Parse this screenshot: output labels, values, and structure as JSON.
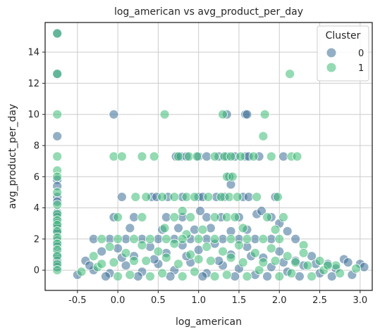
{
  "chart_data": {
    "type": "scatter",
    "title": "log_american vs avg_product_per_day",
    "xlabel": "log_american",
    "ylabel": "avg_product_per_day",
    "xlim": [
      -0.9,
      3.15
    ],
    "ylim": [
      -1.3,
      15.9
    ],
    "x_ticks": [
      "-0.5",
      "0.0",
      "0.5",
      "1.0",
      "1.5",
      "2.0",
      "2.5",
      "3.0"
    ],
    "x_tick_values": [
      -0.5,
      0.0,
      0.5,
      1.0,
      1.5,
      2.0,
      2.5,
      3.0
    ],
    "y_ticks": [
      "0",
      "2",
      "4",
      "6",
      "8",
      "10",
      "12",
      "14"
    ],
    "y_tick_values": [
      0,
      2,
      4,
      6,
      8,
      10,
      12,
      14
    ],
    "grid": true,
    "legend": {
      "title": "Cluster",
      "placement": "top-right",
      "entries": [
        "0",
        "1"
      ]
    },
    "series": [
      {
        "name": "0",
        "color": "#3b6d96",
        "points": [
          [
            -0.75,
            15.2
          ],
          [
            -0.75,
            12.6
          ],
          [
            -0.75,
            8.6
          ],
          [
            -0.75,
            5.8
          ],
          [
            -0.75,
            5.4
          ],
          [
            -0.75,
            4.7
          ],
          [
            -0.75,
            4.4
          ],
          [
            -0.75,
            3.7
          ],
          [
            -0.75,
            3.4
          ],
          [
            -0.75,
            3.0
          ],
          [
            -0.75,
            2.7
          ],
          [
            -0.75,
            2.4
          ],
          [
            -0.75,
            1.9
          ],
          [
            -0.75,
            1.5
          ],
          [
            -0.75,
            1.0
          ],
          [
            -0.75,
            0.6
          ],
          [
            -0.75,
            0.2
          ],
          [
            -0.05,
            10.0
          ],
          [
            1.35,
            10.0
          ],
          [
            1.58,
            10.0
          ],
          [
            1.6,
            10.0
          ],
          [
            0.72,
            7.3
          ],
          [
            0.78,
            7.3
          ],
          [
            0.85,
            7.3
          ],
          [
            1.0,
            7.3
          ],
          [
            1.1,
            7.3
          ],
          [
            1.25,
            7.3
          ],
          [
            1.35,
            7.3
          ],
          [
            1.45,
            7.3
          ],
          [
            1.58,
            7.3
          ],
          [
            1.62,
            7.3
          ],
          [
            1.75,
            7.3
          ],
          [
            2.05,
            7.3
          ],
          [
            1.38,
            6.0
          ],
          [
            1.4,
            5.5
          ],
          [
            0.05,
            4.7
          ],
          [
            0.42,
            4.7
          ],
          [
            0.48,
            4.7
          ],
          [
            0.62,
            4.7
          ],
          [
            0.8,
            4.7
          ],
          [
            1.0,
            4.7
          ],
          [
            1.05,
            4.7
          ],
          [
            1.22,
            4.7
          ],
          [
            1.32,
            4.7
          ],
          [
            1.55,
            4.7
          ],
          [
            1.62,
            4.7
          ],
          [
            1.95,
            4.7
          ],
          [
            -0.05,
            3.4
          ],
          [
            0.2,
            3.4
          ],
          [
            0.6,
            3.4
          ],
          [
            0.8,
            3.4
          ],
          [
            1.1,
            3.4
          ],
          [
            1.28,
            3.4
          ],
          [
            1.5,
            3.4
          ],
          [
            1.72,
            3.6
          ],
          [
            1.78,
            3.8
          ],
          [
            1.02,
            3.8
          ],
          [
            1.9,
            3.4
          ],
          [
            2.0,
            3.0
          ],
          [
            0.15,
            2.7
          ],
          [
            0.55,
            2.6
          ],
          [
            0.75,
            2.7
          ],
          [
            0.95,
            2.6
          ],
          [
            1.15,
            2.7
          ],
          [
            1.4,
            2.5
          ],
          [
            1.6,
            2.6
          ],
          [
            2.1,
            2.5
          ],
          [
            2.2,
            2.0
          ],
          [
            -0.3,
            2.0
          ],
          [
            -0.1,
            2.0
          ],
          [
            0.1,
            2.0
          ],
          [
            0.3,
            2.0
          ],
          [
            0.5,
            2.0
          ],
          [
            0.7,
            2.0
          ],
          [
            0.9,
            2.0
          ],
          [
            1.1,
            2.0
          ],
          [
            1.3,
            2.0
          ],
          [
            1.5,
            2.0
          ],
          [
            1.7,
            2.0
          ],
          [
            1.9,
            2.0
          ],
          [
            -0.4,
            0.6
          ],
          [
            -0.2,
            1.2
          ],
          [
            0.0,
            1.4
          ],
          [
            0.2,
            0.9
          ],
          [
            0.4,
            1.5
          ],
          [
            0.6,
            1.1
          ],
          [
            0.8,
            1.6
          ],
          [
            1.0,
            1.3
          ],
          [
            1.2,
            1.7
          ],
          [
            1.4,
            1.0
          ],
          [
            1.6,
            1.5
          ],
          [
            1.8,
            0.8
          ],
          [
            2.0,
            1.2
          ],
          [
            2.2,
            0.6
          ],
          [
            2.4,
            0.9
          ],
          [
            2.6,
            0.4
          ],
          [
            2.8,
            0.7
          ],
          [
            3.0,
            0.4
          ],
          [
            -0.5,
            -0.3
          ],
          [
            -0.3,
            0.0
          ],
          [
            -0.1,
            -0.2
          ],
          [
            0.1,
            0.3
          ],
          [
            0.3,
            -0.1
          ],
          [
            0.5,
            0.4
          ],
          [
            0.7,
            0.0
          ],
          [
            0.9,
            0.5
          ],
          [
            1.1,
            -0.2
          ],
          [
            1.3,
            0.3
          ],
          [
            1.5,
            0.1
          ],
          [
            1.7,
            -0.3
          ],
          [
            1.9,
            0.2
          ],
          [
            2.1,
            -0.1
          ],
          [
            2.3,
            0.3
          ],
          [
            2.5,
            -0.2
          ],
          [
            2.7,
            0.1
          ],
          [
            2.9,
            -0.3
          ],
          [
            3.05,
            0.2
          ],
          [
            -0.35,
            0.3
          ],
          [
            0.05,
            0.8
          ],
          [
            0.45,
            0.7
          ],
          [
            0.85,
            0.9
          ],
          [
            1.25,
            0.6
          ],
          [
            1.65,
            0.9
          ],
          [
            2.05,
            0.5
          ],
          [
            2.45,
            0.4
          ],
          [
            2.85,
            0.5
          ],
          [
            -0.15,
            -0.4
          ],
          [
            0.25,
            -0.4
          ],
          [
            0.65,
            -0.4
          ],
          [
            1.05,
            -0.4
          ],
          [
            1.45,
            -0.4
          ],
          [
            1.85,
            -0.4
          ],
          [
            2.25,
            -0.4
          ],
          [
            2.65,
            -0.4
          ]
        ]
      },
      {
        "name": "1",
        "color": "#3dbb74",
        "points": [
          [
            -0.75,
            15.2
          ],
          [
            -0.75,
            12.6
          ],
          [
            -0.75,
            10.0
          ],
          [
            -0.75,
            7.3
          ],
          [
            -0.75,
            6.4
          ],
          [
            -0.75,
            6.0
          ],
          [
            -0.75,
            5.0
          ],
          [
            -0.75,
            4.2
          ],
          [
            -0.75,
            3.6
          ],
          [
            -0.75,
            3.2
          ],
          [
            -0.75,
            2.9
          ],
          [
            -0.75,
            2.5
          ],
          [
            -0.75,
            2.1
          ],
          [
            -0.75,
            1.7
          ],
          [
            -0.75,
            1.3
          ],
          [
            -0.75,
            0.9
          ],
          [
            -0.75,
            0.4
          ],
          [
            -0.75,
            0.0
          ],
          [
            0.58,
            10.0
          ],
          [
            1.3,
            10.0
          ],
          [
            1.82,
            10.0
          ],
          [
            2.13,
            12.6
          ],
          [
            -0.05,
            7.3
          ],
          [
            0.05,
            7.3
          ],
          [
            0.3,
            7.3
          ],
          [
            0.45,
            7.3
          ],
          [
            0.75,
            7.3
          ],
          [
            0.88,
            7.3
          ],
          [
            0.98,
            7.3
          ],
          [
            1.2,
            7.3
          ],
          [
            1.32,
            7.3
          ],
          [
            1.4,
            7.3
          ],
          [
            1.52,
            7.3
          ],
          [
            1.68,
            7.3
          ],
          [
            1.9,
            7.3
          ],
          [
            2.15,
            7.3
          ],
          [
            2.22,
            7.3
          ],
          [
            1.8,
            8.6
          ],
          [
            1.35,
            6.0
          ],
          [
            1.42,
            6.0
          ],
          [
            0.22,
            4.7
          ],
          [
            0.35,
            4.7
          ],
          [
            0.55,
            4.7
          ],
          [
            0.7,
            4.7
          ],
          [
            0.85,
            4.7
          ],
          [
            0.95,
            4.7
          ],
          [
            1.12,
            4.7
          ],
          [
            1.28,
            4.7
          ],
          [
            1.38,
            4.7
          ],
          [
            1.48,
            4.7
          ],
          [
            1.72,
            4.7
          ],
          [
            1.98,
            4.7
          ],
          [
            0.0,
            3.4
          ],
          [
            0.3,
            3.4
          ],
          [
            0.7,
            3.4
          ],
          [
            0.9,
            3.4
          ],
          [
            1.2,
            3.4
          ],
          [
            1.35,
            3.4
          ],
          [
            1.45,
            3.4
          ],
          [
            1.85,
            3.4
          ],
          [
            2.05,
            3.4
          ],
          [
            0.8,
            3.8
          ],
          [
            0.58,
            2.7
          ],
          [
            0.85,
            2.3
          ],
          [
            1.05,
            2.6
          ],
          [
            1.55,
            2.7
          ],
          [
            1.95,
            2.6
          ],
          [
            -0.2,
            2.0
          ],
          [
            0.0,
            2.0
          ],
          [
            0.2,
            2.0
          ],
          [
            0.4,
            2.0
          ],
          [
            0.6,
            2.0
          ],
          [
            0.8,
            2.0
          ],
          [
            1.0,
            2.0
          ],
          [
            1.2,
            2.0
          ],
          [
            1.4,
            2.0
          ],
          [
            1.6,
            2.0
          ],
          [
            1.8,
            2.0
          ],
          [
            2.0,
            2.0
          ],
          [
            2.3,
            1.6
          ],
          [
            -0.3,
            0.9
          ],
          [
            -0.1,
            1.5
          ],
          [
            0.1,
            1.1
          ],
          [
            0.3,
            1.6
          ],
          [
            0.5,
            1.2
          ],
          [
            0.7,
            1.7
          ],
          [
            0.9,
            1.0
          ],
          [
            1.1,
            1.5
          ],
          [
            1.3,
            1.2
          ],
          [
            1.5,
            1.6
          ],
          [
            1.7,
            1.1
          ],
          [
            1.9,
            1.4
          ],
          [
            2.1,
            0.9
          ],
          [
            2.3,
            1.1
          ],
          [
            2.5,
            0.6
          ],
          [
            2.7,
            0.3
          ],
          [
            -0.45,
            -0.1
          ],
          [
            -0.25,
            0.2
          ],
          [
            -0.05,
            0.5
          ],
          [
            0.15,
            -0.3
          ],
          [
            0.35,
            0.6
          ],
          [
            0.55,
            -0.2
          ],
          [
            0.75,
            0.4
          ],
          [
            0.95,
            -0.1
          ],
          [
            1.15,
            0.6
          ],
          [
            1.35,
            -0.3
          ],
          [
            1.55,
            0.5
          ],
          [
            1.75,
            0.0
          ],
          [
            1.95,
            0.6
          ],
          [
            2.15,
            -0.2
          ],
          [
            2.35,
            0.3
          ],
          [
            2.55,
            0.0
          ],
          [
            2.75,
            -0.2
          ],
          [
            2.95,
            0.1
          ],
          [
            -0.2,
            0.4
          ],
          [
            0.2,
            0.6
          ],
          [
            0.6,
            0.8
          ],
          [
            1.0,
            0.7
          ],
          [
            1.4,
            0.8
          ],
          [
            1.8,
            0.5
          ],
          [
            2.2,
            0.5
          ],
          [
            2.6,
            0.3
          ],
          [
            0.0,
            -0.4
          ],
          [
            0.4,
            -0.4
          ],
          [
            0.8,
            -0.4
          ],
          [
            1.2,
            -0.4
          ],
          [
            1.6,
            -0.4
          ],
          [
            2.0,
            -0.4
          ],
          [
            2.4,
            -0.4
          ]
        ]
      }
    ]
  }
}
